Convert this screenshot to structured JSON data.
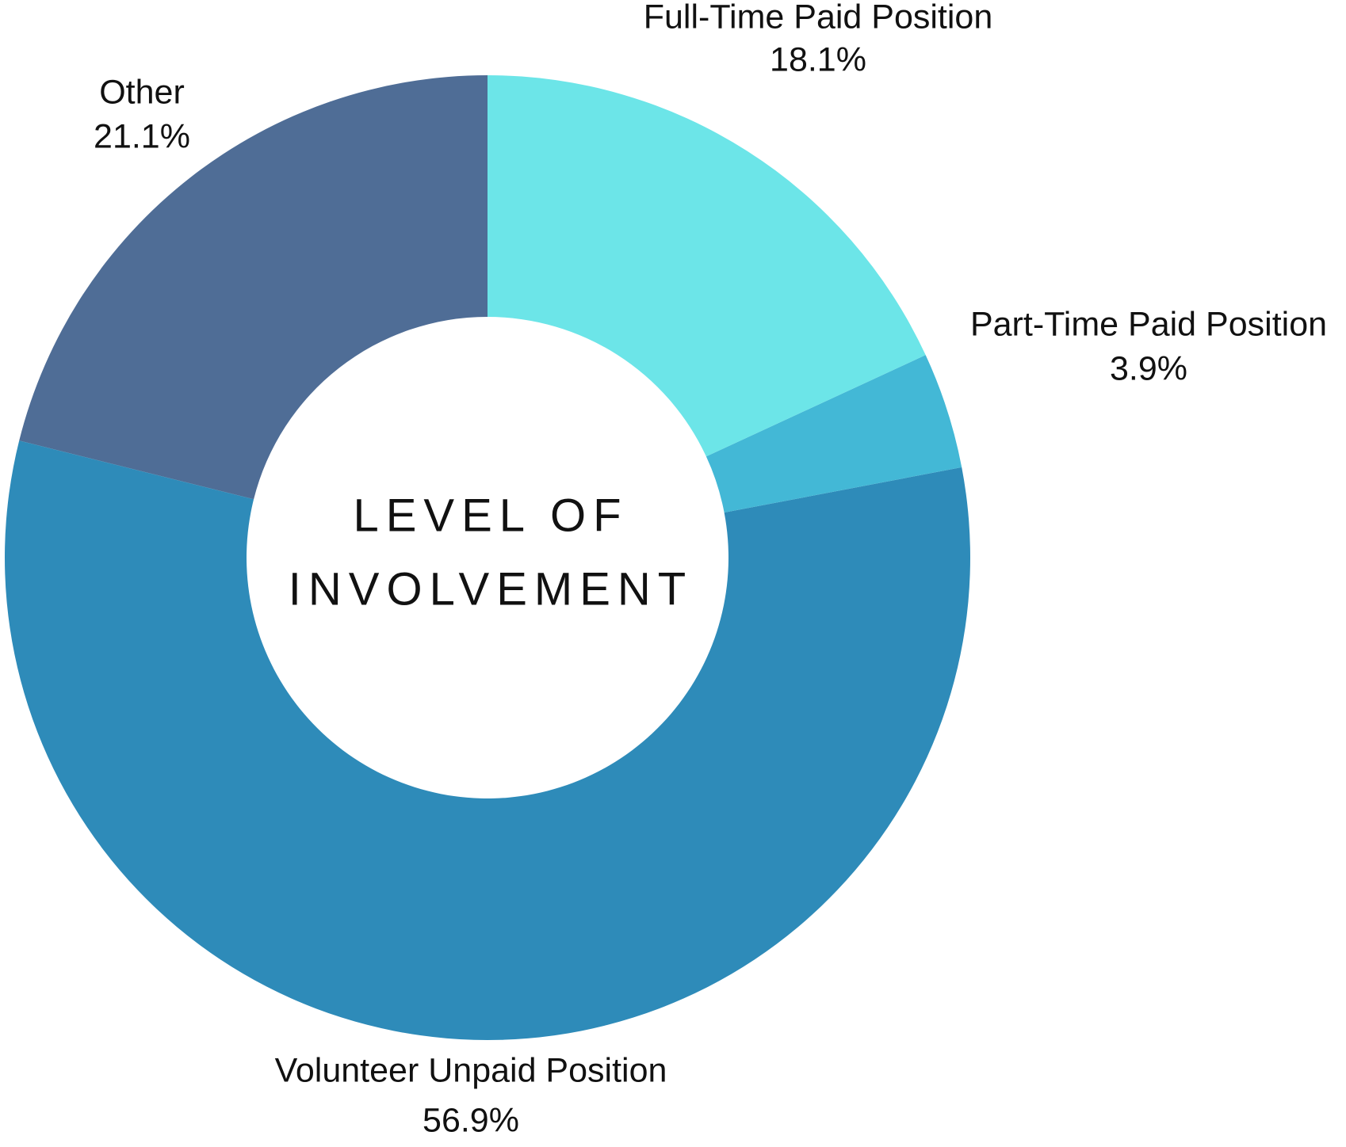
{
  "chart_data": {
    "type": "donut",
    "title": [
      "LEVEL OF",
      "INVOLVEMENT"
    ],
    "categories": [
      "Full-Time Paid Position",
      "Part-Time Paid Position",
      "Volunteer Unpaid Position",
      "Other"
    ],
    "values": [
      18.1,
      3.9,
      56.9,
      21.1
    ],
    "value_labels": [
      "18.1%",
      "3.9%",
      "56.9%",
      "21.1%"
    ],
    "colors": [
      "#6ce5e8",
      "#43b8d6",
      "#2e8bb9",
      "#4f6d96"
    ]
  }
}
